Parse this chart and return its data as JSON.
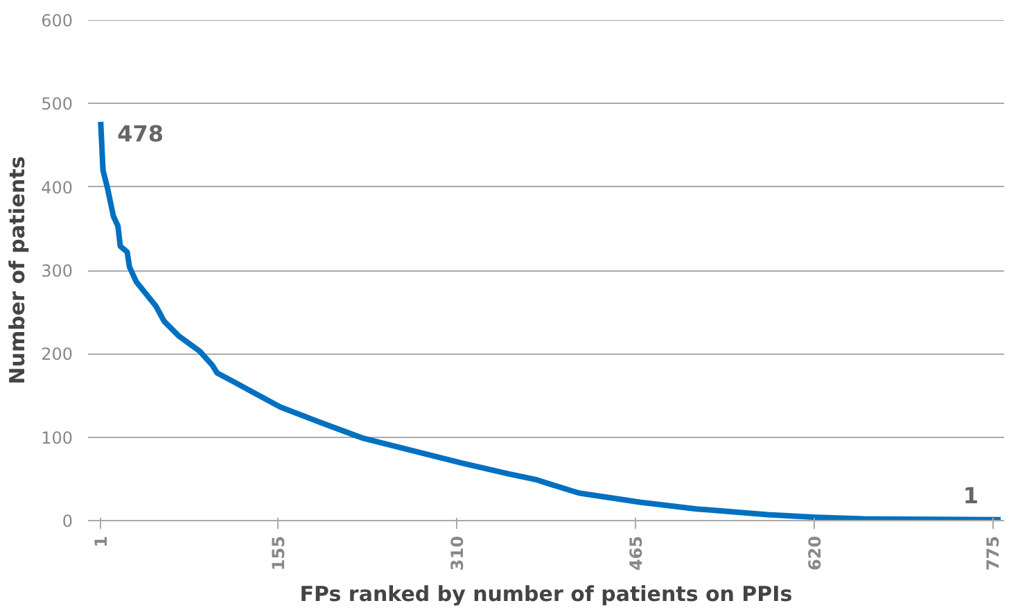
{
  "chart_data": {
    "type": "line",
    "xlabel": "FPs ranked by number of patients on PPIs",
    "ylabel": "Number of patients",
    "x": [
      1,
      3,
      7,
      12,
      16,
      18,
      24,
      26,
      32,
      49,
      56,
      69,
      87,
      98,
      102,
      117,
      133,
      157,
      191,
      228,
      268,
      314,
      355,
      379,
      388,
      416,
      469,
      518,
      580,
      622,
      663,
      782
    ],
    "series": [
      {
        "color": "#0070c0",
        "values": [
          478,
          420,
          398,
          365,
          353,
          329,
          322,
          304,
          286,
          257,
          239,
          221,
          203,
          186,
          177,
          166,
          154,
          136,
          118,
          99,
          85,
          69,
          56,
          49,
          45,
          33,
          22,
          14,
          7,
          4,
          2,
          1
        ]
      }
    ],
    "xlim": [
      -10,
      785
    ],
    "xticks": [
      1,
      155,
      310,
      465,
      620,
      775
    ],
    "ylim": [
      0,
      600
    ],
    "yticks": [
      0,
      100,
      200,
      300,
      400,
      500,
      600
    ],
    "grid": "y",
    "marker": "none",
    "line_style": "solid",
    "annotations": [
      {
        "text": "478",
        "x": 1,
        "y": 478
      },
      {
        "text": "1",
        "x": 782,
        "y": 1
      }
    ]
  }
}
